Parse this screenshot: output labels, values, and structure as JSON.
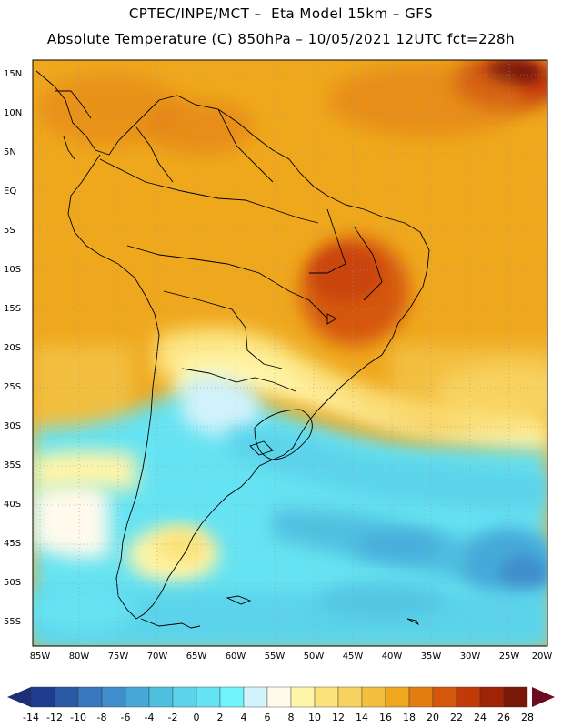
{
  "header": {
    "line1": "CPTEC/INPE/MCT –  Eta Model 15km – GFS",
    "line2": "Absolute Temperature (C) 850hPa – 10/05/2021 12UTC fct=228h"
  },
  "axes": {
    "lat_labels": [
      "15N",
      "10N",
      "5N",
      "EQ",
      "5S",
      "10S",
      "15S",
      "20S",
      "25S",
      "30S",
      "35S",
      "40S",
      "45S",
      "50S",
      "55S"
    ],
    "lon_labels": [
      "85W",
      "80W",
      "75W",
      "70W",
      "65W",
      "60W",
      "55W",
      "50W",
      "45W",
      "40W",
      "35W",
      "30W",
      "25W",
      "20W"
    ]
  },
  "colorbar": {
    "labels": [
      "-14",
      "-12",
      "-10",
      "-8",
      "-6",
      "-4",
      "-2",
      "0",
      "2",
      "4",
      "6",
      "8",
      "10",
      "12",
      "14",
      "16",
      "18",
      "20",
      "22",
      "24",
      "26",
      "28"
    ],
    "colors": [
      "#1f3d8c",
      "#2a5aa5",
      "#3a78bd",
      "#3f8fcc",
      "#45a8d9",
      "#4fbfe0",
      "#5cd3ea",
      "#66e3f2",
      "#6ff5fb",
      "#d2f3fb",
      "#fffaec",
      "#fff5a8",
      "#fbe27a",
      "#f8d25f",
      "#f3bf3f",
      "#efa81e",
      "#e27d12",
      "#d5570b",
      "#c23a08",
      "#9f2306",
      "#7a1808"
    ],
    "lower_arrow_color": "#1b2f78",
    "upper_arrow_color": "#6b0c22"
  }
}
